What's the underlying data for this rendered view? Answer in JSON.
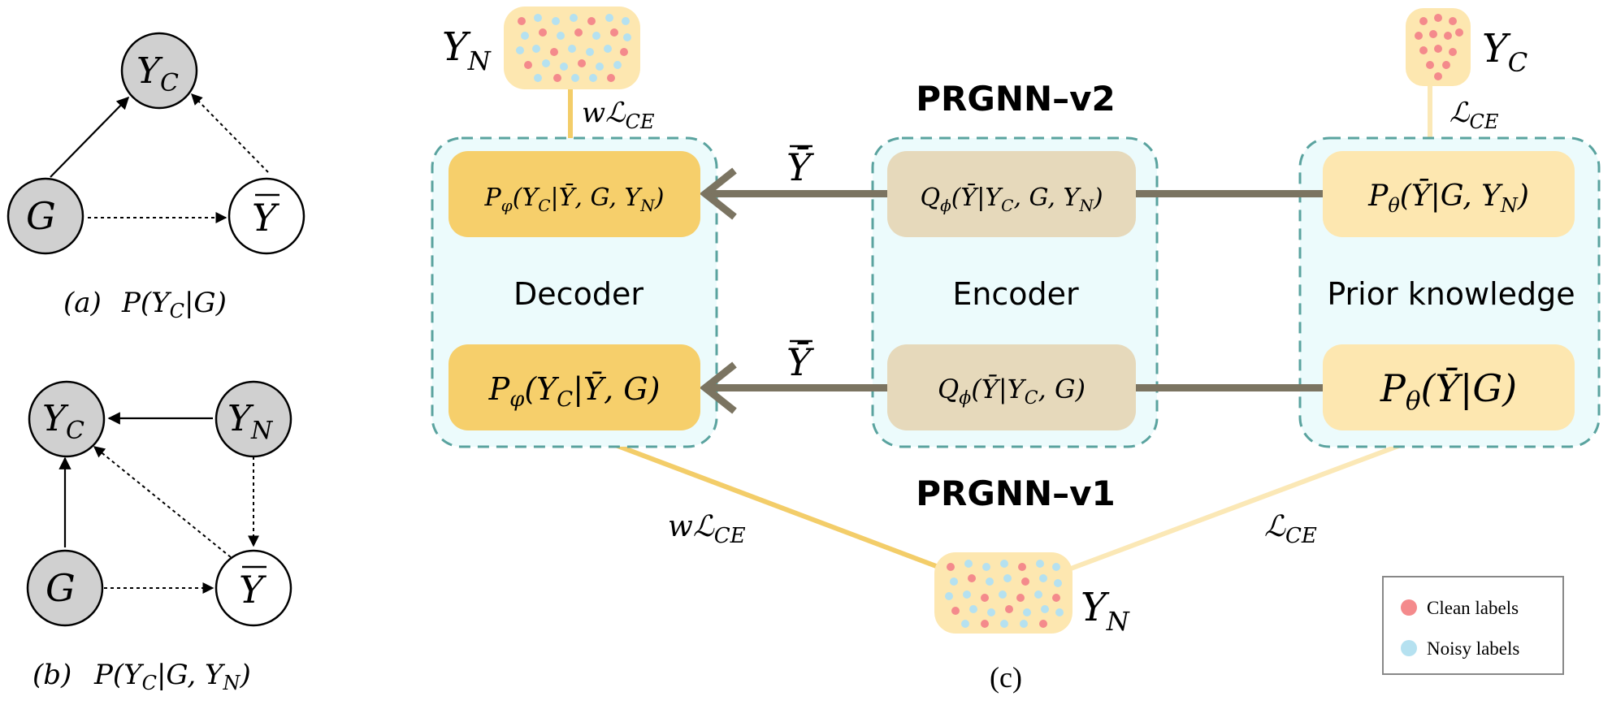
{
  "graph_a": {
    "node_yc": "Y",
    "node_yc_sub": "C",
    "node_g": "G",
    "node_ybar": "Y",
    "caption_tag": "(a)",
    "caption_formula": "P(Y_C|G)"
  },
  "graph_b": {
    "node_yc": "Y",
    "node_yc_sub": "C",
    "node_yn": "Y",
    "node_yn_sub": "N",
    "node_g": "G",
    "node_ybar": "Y",
    "caption_tag": "(b)",
    "caption_formula": "P(Y_C|G, Y_N)"
  },
  "diagram_c": {
    "title_v2": "PRGNN–v2",
    "title_v1": "PRGNN–v1",
    "decoder_label": "Decoder",
    "encoder_label": "Encoder",
    "prior_label": "Prior knowledge",
    "decoder_top": "P_φ(Y_C|Ȳ, G, Y_N)",
    "decoder_bottom": "P_φ(Y_C|Ȳ, G)",
    "encoder_top": "Q_ϕ(Ȳ|Y_C, G, Y_N)",
    "encoder_bottom": "Q_ϕ(Ȳ|Y_C, G)",
    "prior_top": "P_θ(Ȳ|G, Y_N)",
    "prior_bottom": "P_θ(Ȳ|G)",
    "arrow_label": "Ȳ",
    "yn_label": "Y",
    "yn_sub": "N",
    "yc_label": "Y",
    "yc_sub": "C",
    "loss_w": "wℒ",
    "loss": "ℒ",
    "loss_sub": "CE",
    "caption": "(c)"
  },
  "legend": {
    "clean": "Clean labels",
    "noisy": "Noisy labels"
  },
  "colors": {
    "clean_dot": "#f48a8c",
    "noisy_dot": "#b5e1f0",
    "decoder_box": "#f6cf6b",
    "encoder_box": "#e6d9bb",
    "prior_box": "#fde7b0",
    "panel_fill": "#ecfbfc",
    "panel_border": "#5aa39f",
    "arrow": "#7b7461",
    "line_dark": "#f3cd69",
    "line_light": "#fbe8b6"
  }
}
